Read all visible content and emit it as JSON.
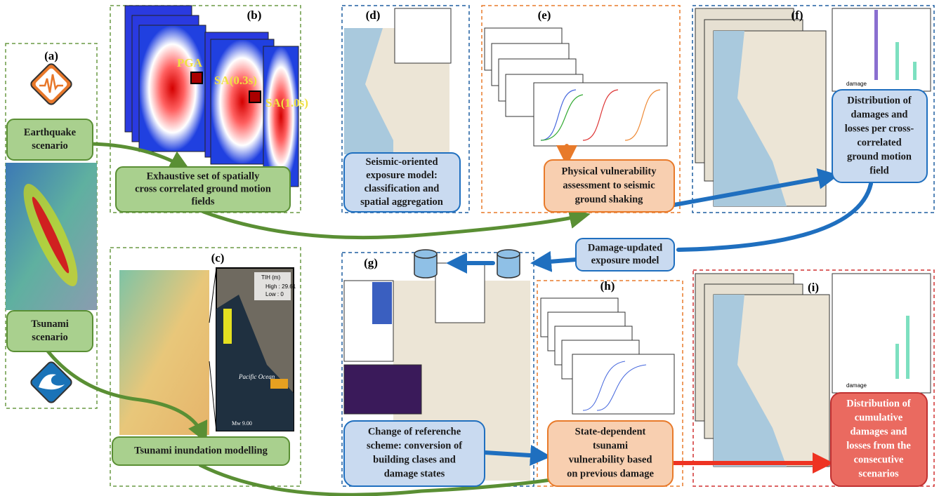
{
  "panels": [
    "(a)",
    "(b)",
    "(c)",
    "(d)",
    "(e)",
    "(f)",
    "(g)",
    "(h)",
    "(i)"
  ],
  "boxes": {
    "earthquake": [
      "Earthquake",
      "scenario"
    ],
    "tsunami": [
      "Tsunami",
      "scenario"
    ],
    "ground_motion": [
      "Exhaustive set of spatially",
      "cross correlated ground motion",
      "fields"
    ],
    "inundation": [
      "Tsunami inundation modelling"
    ],
    "exposure": [
      "Seismic-oriented",
      "exposure model:",
      "classification and",
      "spatial aggregation"
    ],
    "vulnerability": [
      "Physical  vulnerability",
      "assessment to seismic",
      "ground shaking"
    ],
    "distribution": [
      "Distribution of",
      "damages and",
      "losses per cross-",
      "correlated",
      "ground motion",
      "field"
    ],
    "damage_updated": [
      "Damage-updated",
      "exposure model"
    ],
    "reference": [
      "Change of referenche",
      "scheme: conversion of",
      "building clases and",
      "damage states"
    ],
    "state_dependent": [
      "State-dependent",
      "tsunami",
      "vulnerability based",
      "on previous damage"
    ],
    "cumulative": [
      "Distribution of",
      "cumulative",
      "damages and",
      "losses from the",
      "consecutive",
      "scenarios"
    ]
  },
  "map_labels": {
    "pga": "PGA",
    "sa03": "SA(0.3s)",
    "sa10": "SA(1.0s)",
    "ocean": "Pacific Ocean",
    "magnitude": "Mw 9.00",
    "legend_title": "TIH (m)",
    "high": "High : 29.61",
    "low": "Low : 0",
    "damage_f": "damage",
    "damage_i": "damage"
  }
}
